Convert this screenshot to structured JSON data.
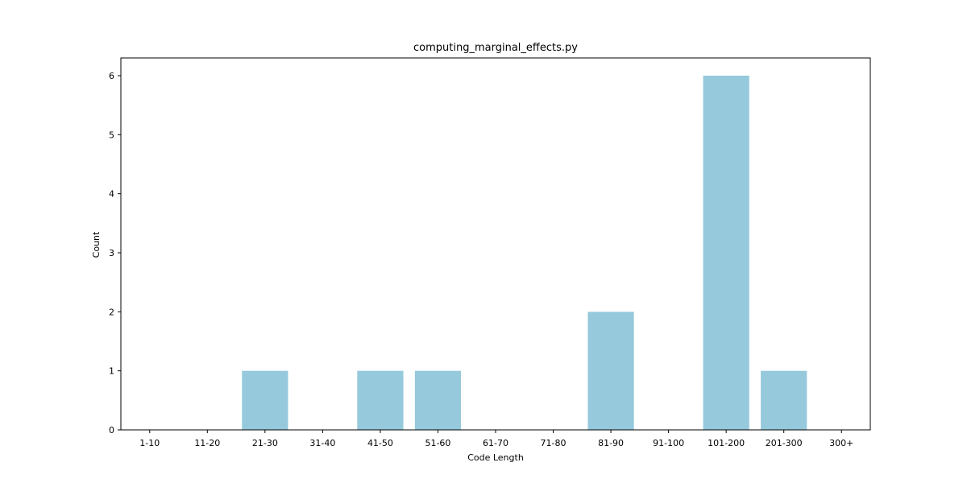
{
  "chart_data": {
    "type": "bar",
    "title": "computing_marginal_effects.py",
    "xlabel": "Code Length",
    "ylabel": "Count",
    "categories": [
      "1-10",
      "11-20",
      "21-30",
      "31-40",
      "41-50",
      "51-60",
      "61-70",
      "71-80",
      "81-90",
      "91-100",
      "101-200",
      "201-300",
      "300+"
    ],
    "values": [
      0,
      0,
      1,
      0,
      1,
      1,
      0,
      0,
      2,
      0,
      6,
      1,
      0
    ],
    "ylim": [
      0,
      6.3
    ],
    "yticks": [
      0,
      1,
      2,
      3,
      4,
      5,
      6
    ],
    "bar_color": "#96c9dc",
    "grid": false,
    "legend": "none"
  }
}
